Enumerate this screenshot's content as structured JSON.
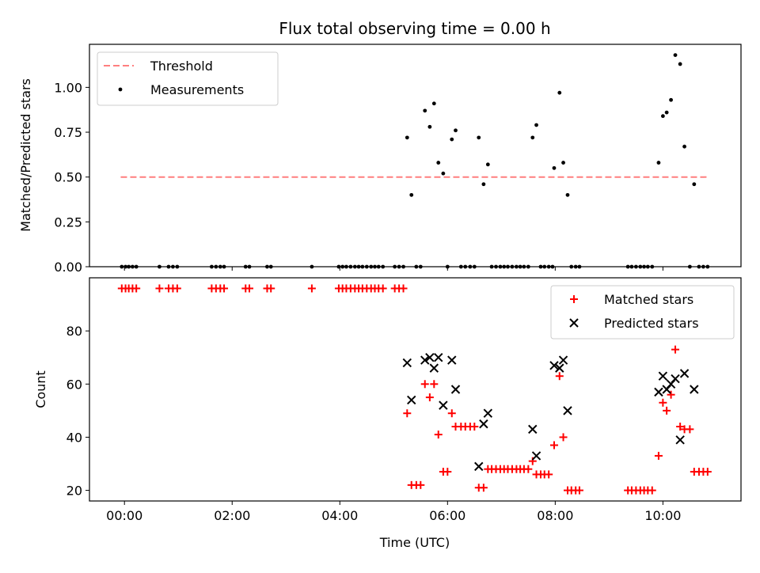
{
  "chart_data": {
    "type": "scatter",
    "title": "Flux total observing time = 0.00 h",
    "xlabel": "Time (UTC)",
    "x_units": "hours UTC",
    "xlim": [
      -0.65,
      11.45
    ],
    "x_ticks": [
      {
        "value": 0,
        "label": "00:00"
      },
      {
        "value": 2,
        "label": "02:00"
      },
      {
        "value": 4,
        "label": "04:00"
      },
      {
        "value": 6,
        "label": "06:00"
      },
      {
        "value": 8,
        "label": "08:00"
      },
      {
        "value": 10,
        "label": "10:00"
      }
    ],
    "panels": [
      {
        "id": "ratio",
        "ylabel": "Matched/Predicted stars",
        "ylim": [
          0,
          1.24
        ],
        "y_ticks": [
          {
            "value": 0,
            "label": "0.00"
          },
          {
            "value": 0.25,
            "label": "0.25"
          },
          {
            "value": 0.5,
            "label": "0.50"
          },
          {
            "value": 0.75,
            "label": "0.75"
          },
          {
            "value": 1.0,
            "label": "1.00"
          }
        ],
        "legend": {
          "position": "upper left",
          "entries": [
            "Threshold",
            "Measurements"
          ]
        },
        "series": [
          {
            "name": "Threshold",
            "kind": "line",
            "style": "dashed",
            "color": "#ff7f7f",
            "x": [
              -0.07,
              10.85
            ],
            "y": [
              0.5,
              0.5
            ]
          },
          {
            "name": "Measurements",
            "kind": "scatter",
            "marker": "dot",
            "color": "#000000",
            "points": [
              [
                -0.05,
                0
              ],
              [
                0.02,
                0
              ],
              [
                0.08,
                0
              ],
              [
                0.15,
                0
              ],
              [
                0.22,
                0
              ],
              [
                0.65,
                0
              ],
              [
                0.82,
                0
              ],
              [
                0.9,
                0
              ],
              [
                0.98,
                0
              ],
              [
                1.62,
                0
              ],
              [
                1.7,
                0
              ],
              [
                1.78,
                0
              ],
              [
                1.85,
                0
              ],
              [
                2.25,
                0
              ],
              [
                2.32,
                0
              ],
              [
                2.65,
                0
              ],
              [
                2.72,
                0
              ],
              [
                3.48,
                0
              ],
              [
                3.98,
                0
              ],
              [
                4.05,
                0
              ],
              [
                4.12,
                0
              ],
              [
                4.2,
                0
              ],
              [
                4.28,
                0
              ],
              [
                4.35,
                0
              ],
              [
                4.42,
                0
              ],
              [
                4.5,
                0
              ],
              [
                4.58,
                0
              ],
              [
                4.65,
                0
              ],
              [
                4.72,
                0
              ],
              [
                4.8,
                0
              ],
              [
                5.02,
                0
              ],
              [
                5.1,
                0
              ],
              [
                5.18,
                0
              ],
              [
                5.25,
                0.72
              ],
              [
                5.33,
                0.4
              ],
              [
                5.42,
                0
              ],
              [
                5.5,
                0
              ],
              [
                5.58,
                0.87
              ],
              [
                5.67,
                0.78
              ],
              [
                5.75,
                0.91
              ],
              [
                5.83,
                0.58
              ],
              [
                5.92,
                0.52
              ],
              [
                6.0,
                0
              ],
              [
                6.08,
                0.71
              ],
              [
                6.15,
                0.76
              ],
              [
                6.25,
                0
              ],
              [
                6.33,
                0
              ],
              [
                6.42,
                0
              ],
              [
                6.5,
                0
              ],
              [
                6.58,
                0.72
              ],
              [
                6.67,
                0.46
              ],
              [
                6.75,
                0.57
              ],
              [
                6.82,
                0
              ],
              [
                6.9,
                0
              ],
              [
                6.98,
                0
              ],
              [
                7.05,
                0
              ],
              [
                7.12,
                0
              ],
              [
                7.2,
                0
              ],
              [
                7.28,
                0
              ],
              [
                7.35,
                0
              ],
              [
                7.42,
                0
              ],
              [
                7.5,
                0
              ],
              [
                7.58,
                0.72
              ],
              [
                7.65,
                0.79
              ],
              [
                7.73,
                0
              ],
              [
                7.8,
                0
              ],
              [
                7.88,
                0
              ],
              [
                7.95,
                0
              ],
              [
                7.98,
                0.55
              ],
              [
                8.08,
                0.97
              ],
              [
                8.15,
                0.58
              ],
              [
                8.23,
                0.4
              ],
              [
                8.3,
                0
              ],
              [
                8.38,
                0
              ],
              [
                8.45,
                0
              ],
              [
                9.35,
                0
              ],
              [
                9.42,
                0
              ],
              [
                9.5,
                0
              ],
              [
                9.58,
                0
              ],
              [
                9.65,
                0
              ],
              [
                9.72,
                0
              ],
              [
                9.8,
                0
              ],
              [
                9.92,
                0.58
              ],
              [
                10.0,
                0.84
              ],
              [
                10.07,
                0.86
              ],
              [
                10.15,
                0.93
              ],
              [
                10.23,
                1.18
              ],
              [
                10.32,
                1.13
              ],
              [
                10.4,
                0.67
              ],
              [
                10.5,
                0
              ],
              [
                10.58,
                0.46
              ],
              [
                10.67,
                0
              ],
              [
                10.75,
                0
              ],
              [
                10.83,
                0
              ]
            ]
          }
        ]
      },
      {
        "id": "count",
        "ylabel": "Count",
        "ylim": [
          16,
          100
        ],
        "y_ticks": [
          {
            "value": 20,
            "label": "20"
          },
          {
            "value": 40,
            "label": "40"
          },
          {
            "value": 60,
            "label": "60"
          },
          {
            "value": 80,
            "label": "80"
          }
        ],
        "legend": {
          "position": "upper right",
          "entries": [
            "Matched stars",
            "Predicted stars"
          ]
        },
        "series": [
          {
            "name": "Matched stars",
            "kind": "scatter",
            "marker": "plus",
            "color": "#ff0000",
            "points": [
              [
                -0.05,
                96
              ],
              [
                0.02,
                96
              ],
              [
                0.08,
                96
              ],
              [
                0.15,
                96
              ],
              [
                0.22,
                96
              ],
              [
                0.65,
                96
              ],
              [
                0.82,
                96
              ],
              [
                0.9,
                96
              ],
              [
                0.98,
                96
              ],
              [
                1.62,
                96
              ],
              [
                1.7,
                96
              ],
              [
                1.78,
                96
              ],
              [
                1.85,
                96
              ],
              [
                2.25,
                96
              ],
              [
                2.32,
                96
              ],
              [
                2.65,
                96
              ],
              [
                2.72,
                96
              ],
              [
                3.48,
                96
              ],
              [
                3.98,
                96
              ],
              [
                4.05,
                96
              ],
              [
                4.12,
                96
              ],
              [
                4.2,
                96
              ],
              [
                4.28,
                96
              ],
              [
                4.35,
                96
              ],
              [
                4.42,
                96
              ],
              [
                4.5,
                96
              ],
              [
                4.58,
                96
              ],
              [
                4.65,
                96
              ],
              [
                4.72,
                96
              ],
              [
                4.8,
                96
              ],
              [
                5.02,
                96
              ],
              [
                5.1,
                96
              ],
              [
                5.18,
                96
              ],
              [
                5.25,
                49
              ],
              [
                5.33,
                22
              ],
              [
                5.42,
                22
              ],
              [
                5.5,
                22
              ],
              [
                5.58,
                60
              ],
              [
                5.67,
                55
              ],
              [
                5.75,
                60
              ],
              [
                5.83,
                41
              ],
              [
                5.92,
                27
              ],
              [
                6.0,
                27
              ],
              [
                6.08,
                49
              ],
              [
                6.15,
                44
              ],
              [
                6.25,
                44
              ],
              [
                6.33,
                44
              ],
              [
                6.42,
                44
              ],
              [
                6.5,
                44
              ],
              [
                6.58,
                21
              ],
              [
                6.67,
                21
              ],
              [
                6.75,
                28
              ],
              [
                6.82,
                28
              ],
              [
                6.9,
                28
              ],
              [
                6.98,
                28
              ],
              [
                7.05,
                28
              ],
              [
                7.12,
                28
              ],
              [
                7.2,
                28
              ],
              [
                7.28,
                28
              ],
              [
                7.35,
                28
              ],
              [
                7.42,
                28
              ],
              [
                7.5,
                28
              ],
              [
                7.58,
                31
              ],
              [
                7.65,
                26
              ],
              [
                7.73,
                26
              ],
              [
                7.8,
                26
              ],
              [
                7.88,
                26
              ],
              [
                7.98,
                37
              ],
              [
                8.08,
                63
              ],
              [
                8.15,
                40
              ],
              [
                8.23,
                20
              ],
              [
                8.3,
                20
              ],
              [
                8.38,
                20
              ],
              [
                8.45,
                20
              ],
              [
                9.35,
                20
              ],
              [
                9.42,
                20
              ],
              [
                9.5,
                20
              ],
              [
                9.58,
                20
              ],
              [
                9.65,
                20
              ],
              [
                9.72,
                20
              ],
              [
                9.8,
                20
              ],
              [
                9.92,
                33
              ],
              [
                10.0,
                53
              ],
              [
                10.07,
                50
              ],
              [
                10.15,
                56
              ],
              [
                10.23,
                73
              ],
              [
                10.32,
                44
              ],
              [
                10.4,
                43
              ],
              [
                10.5,
                43
              ],
              [
                10.58,
                27
              ],
              [
                10.67,
                27
              ],
              [
                10.75,
                27
              ],
              [
                10.83,
                27
              ]
            ]
          },
          {
            "name": "Predicted stars",
            "kind": "scatter",
            "marker": "x",
            "color": "#000000",
            "points": [
              [
                5.25,
                68
              ],
              [
                5.33,
                54
              ],
              [
                5.58,
                69
              ],
              [
                5.67,
                70
              ],
              [
                5.75,
                66
              ],
              [
                5.83,
                70
              ],
              [
                5.92,
                52
              ],
              [
                6.08,
                69
              ],
              [
                6.15,
                58
              ],
              [
                6.58,
                29
              ],
              [
                6.67,
                45
              ],
              [
                6.75,
                49
              ],
              [
                7.58,
                43
              ],
              [
                7.65,
                33
              ],
              [
                7.98,
                67
              ],
              [
                8.08,
                66
              ],
              [
                8.15,
                69
              ],
              [
                8.23,
                50
              ],
              [
                9.92,
                57
              ],
              [
                10.0,
                63
              ],
              [
                10.07,
                58
              ],
              [
                10.15,
                60
              ],
              [
                10.23,
                62
              ],
              [
                10.32,
                39
              ],
              [
                10.4,
                64
              ],
              [
                10.58,
                58
              ]
            ]
          }
        ]
      }
    ]
  }
}
